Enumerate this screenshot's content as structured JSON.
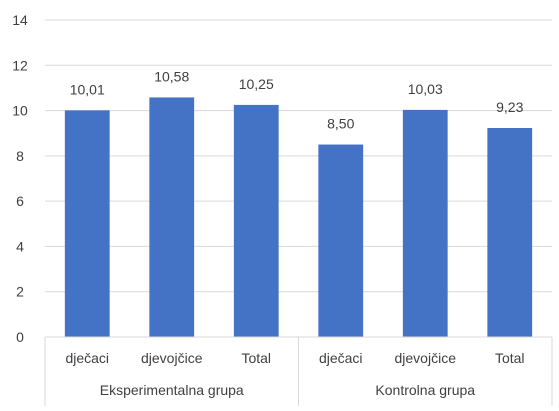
{
  "chart_data": {
    "type": "bar",
    "groups": [
      {
        "label": "Eksperimentalna grupa",
        "categories": [
          "dječaci",
          "djevojčice",
          "Total"
        ],
        "values": [
          10.01,
          10.58,
          10.25
        ],
        "value_labels": [
          "10,01",
          "10,58",
          "10,25"
        ]
      },
      {
        "label": "Kontrolna grupa",
        "categories": [
          "dječaci",
          "djevojčice",
          "Total"
        ],
        "values": [
          8.5,
          10.03,
          9.23
        ],
        "value_labels": [
          "8,50",
          "10,03",
          "9,23"
        ]
      }
    ],
    "ylim": [
      0,
      14
    ],
    "yticks": [
      0,
      2,
      4,
      6,
      8,
      10,
      12,
      14
    ],
    "grid": true,
    "bar_color": "#4472C4",
    "grid_color": "#D9D9D9",
    "text_color": "#404040",
    "title": "",
    "xlabel": "",
    "ylabel": ""
  }
}
